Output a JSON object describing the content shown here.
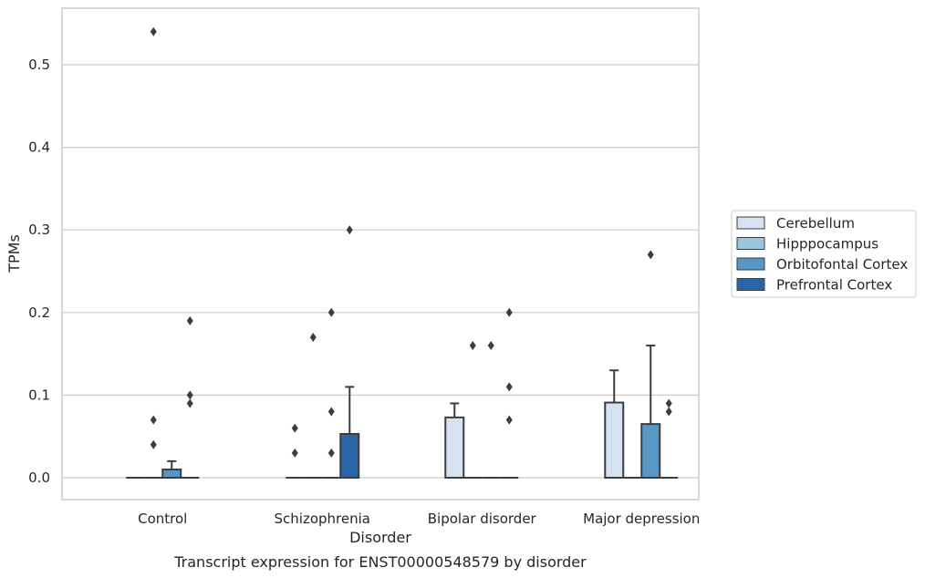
{
  "chart_data": {
    "type": "box",
    "xlabel": "Disorder",
    "ylabel": "TPMs",
    "caption": "Transcript expression for ENST00000548579 by disorder",
    "categories": [
      "Control",
      "Schizophrenia",
      "Bipolar disorder",
      "Major depression"
    ],
    "ylim": [
      -0.027,
      0.566
    ],
    "yticks": [
      0.0,
      0.1,
      0.2,
      0.3,
      0.4,
      0.5
    ],
    "ytick_labels": [
      "0.0",
      "0.1",
      "0.2",
      "0.3",
      "0.4",
      "0.5"
    ],
    "grid": "horizontal",
    "legend_position": "right",
    "colors": {
      "Cerebellum": "#d4e2f1",
      "Hipppocampus": "#9ac5df",
      "Orbitofontal Cortex": "#5697c6",
      "Prefrontal Cortex": "#2b67a6"
    },
    "series": [
      {
        "name": "Cerebellum",
        "boxes": [
          {
            "q1": 0,
            "median": 0,
            "q3": 0,
            "whisker_low": 0,
            "whisker_high": 0,
            "outliers": []
          },
          {
            "q1": 0,
            "median": 0,
            "q3": 0,
            "whisker_low": 0,
            "whisker_high": 0,
            "outliers": [
              0.03,
              0.06
            ]
          },
          {
            "q1": 0,
            "median": 0,
            "q3": 0.073,
            "whisker_low": 0,
            "whisker_high": 0.09,
            "outliers": []
          },
          {
            "q1": 0,
            "median": 0,
            "q3": 0.091,
            "whisker_low": 0,
            "whisker_high": 0.13,
            "outliers": []
          }
        ]
      },
      {
        "name": "Hipppocampus",
        "boxes": [
          {
            "q1": 0,
            "median": 0,
            "q3": 0,
            "whisker_low": 0,
            "whisker_high": 0,
            "outliers": [
              0.04,
              0.07,
              0.54
            ]
          },
          {
            "q1": 0,
            "median": 0,
            "q3": 0,
            "whisker_low": 0,
            "whisker_high": 0,
            "outliers": [
              0.17
            ]
          },
          {
            "q1": 0,
            "median": 0,
            "q3": 0,
            "whisker_low": 0,
            "whisker_high": 0,
            "outliers": [
              0.16
            ]
          },
          {
            "q1": 0,
            "median": 0,
            "q3": 0,
            "whisker_low": 0,
            "whisker_high": 0,
            "outliers": []
          }
        ]
      },
      {
        "name": "Orbitofontal Cortex",
        "boxes": [
          {
            "q1": 0,
            "median": 0,
            "q3": 0.01,
            "whisker_low": 0,
            "whisker_high": 0.02,
            "outliers": []
          },
          {
            "q1": 0,
            "median": 0,
            "q3": 0,
            "whisker_low": 0,
            "whisker_high": 0,
            "outliers": [
              0.03,
              0.08,
              0.2
            ]
          },
          {
            "q1": 0,
            "median": 0,
            "q3": 0,
            "whisker_low": 0,
            "whisker_high": 0,
            "outliers": [
              0.16
            ]
          },
          {
            "q1": 0,
            "median": 0,
            "q3": 0.065,
            "whisker_low": 0,
            "whisker_high": 0.16,
            "outliers": [
              0.27
            ]
          }
        ]
      },
      {
        "name": "Prefrontal Cortex",
        "boxes": [
          {
            "q1": 0,
            "median": 0,
            "q3": 0,
            "whisker_low": 0,
            "whisker_high": 0,
            "outliers": [
              0.09,
              0.1,
              0.19
            ]
          },
          {
            "q1": 0,
            "median": 0,
            "q3": 0.053,
            "whisker_low": 0,
            "whisker_high": 0.11,
            "outliers": [
              0.3
            ]
          },
          {
            "q1": 0,
            "median": 0,
            "q3": 0,
            "whisker_low": 0,
            "whisker_high": 0,
            "outliers": [
              0.07,
              0.11,
              0.2
            ]
          },
          {
            "q1": 0,
            "median": 0,
            "q3": 0,
            "whisker_low": 0,
            "whisker_high": 0,
            "outliers": [
              0.08,
              0.09
            ]
          }
        ]
      }
    ]
  }
}
